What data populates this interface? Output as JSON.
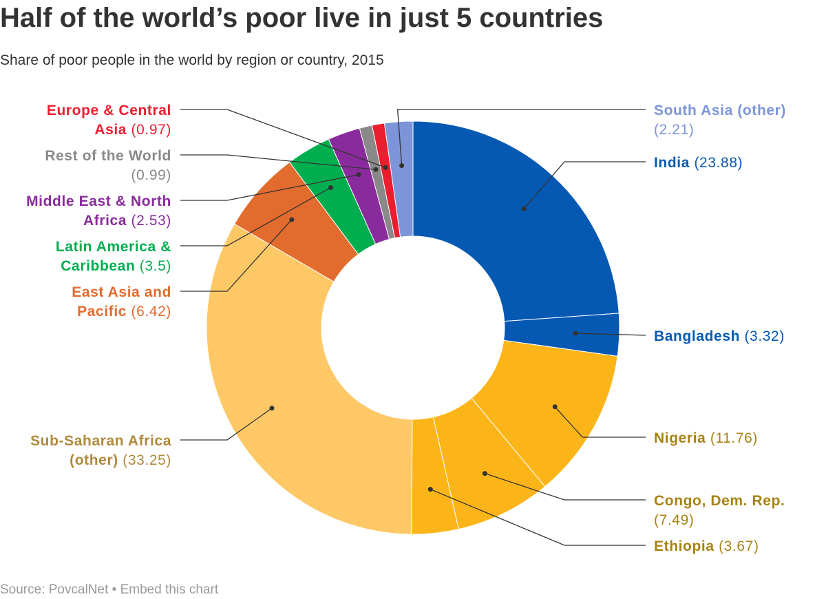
{
  "title": "Half of the world’s poor live in just 5 countries",
  "subtitle": "Share of poor people in the world by region or country, 2015",
  "footer": {
    "source": "Source: PovcalNet",
    "separator": " • ",
    "embed": "Embed this chart"
  },
  "chart_data": {
    "type": "donut",
    "unit": "%",
    "slices": [
      {
        "name": "India",
        "value": 23.88,
        "color": "#0659b3",
        "label_color": "#0659b3",
        "label_lines": [
          [
            "India",
            " (23.88)"
          ]
        ]
      },
      {
        "name": "Bangladesh",
        "value": 3.32,
        "color": "#0659b3",
        "label_color": "#0659b3",
        "label_lines": [
          [
            "Bangladesh",
            " (3.32)"
          ]
        ]
      },
      {
        "name": "Nigeria",
        "value": 11.76,
        "color": "#fbb519",
        "label_color": "#a88314",
        "label_lines": [
          [
            "Nigeria",
            " (11.76)"
          ]
        ]
      },
      {
        "name": "Congo, Dem. Rep.",
        "value": 7.49,
        "color": "#fbb519",
        "label_color": "#a88314",
        "label_lines": [
          [
            "Congo, Dem. Rep.",
            ""
          ],
          [
            "",
            "(7.49)"
          ]
        ]
      },
      {
        "name": "Ethiopia",
        "value": 3.67,
        "color": "#fbb519",
        "label_color": "#a88314",
        "label_lines": [
          [
            "Ethiopia",
            " (3.67)"
          ]
        ]
      },
      {
        "name": "Sub-Saharan Africa (other)",
        "value": 33.25,
        "color": "#fec866",
        "label_color": "#b0893d",
        "label_lines": [
          [
            "Sub-Saharan Africa",
            ""
          ],
          [
            "(other)",
            " (33.25)"
          ]
        ]
      },
      {
        "name": "East Asia and Pacific",
        "value": 6.42,
        "color": "#e26b2e",
        "label_color": "#e26b2e",
        "label_lines": [
          [
            "East Asia and",
            ""
          ],
          [
            "Pacific",
            " (6.42)"
          ]
        ]
      },
      {
        "name": "Latin America & Caribbean",
        "value": 3.5,
        "color": "#00ae4f",
        "label_color": "#00ae4f",
        "label_lines": [
          [
            "Latin America &",
            ""
          ],
          [
            "Caribbean",
            " (3.5)"
          ]
        ]
      },
      {
        "name": "Middle East & North Africa",
        "value": 2.53,
        "color": "#892b9c",
        "label_color": "#892b9c",
        "label_lines": [
          [
            "Middle East & North",
            ""
          ],
          [
            "Africa",
            " (2.53)"
          ]
        ]
      },
      {
        "name": "Rest of the World",
        "value": 0.99,
        "color": "#898989",
        "label_color": "#898989",
        "label_lines": [
          [
            "Rest of the World",
            ""
          ],
          [
            "",
            "(0.99)"
          ]
        ]
      },
      {
        "name": "Europe & Central Asia",
        "value": 0.97,
        "color": "#ec1d2e",
        "label_color": "#ec1d2e",
        "label_lines": [
          [
            "Europe & Central",
            ""
          ],
          [
            "Asia",
            " (0.97)"
          ]
        ]
      },
      {
        "name": "South Asia (other)",
        "value": 2.21,
        "color": "#7d95d8",
        "label_color": "#7d95d8",
        "label_lines": [
          [
            "South Asia (other)",
            ""
          ],
          [
            "",
            "(2.21)"
          ]
        ]
      }
    ]
  }
}
